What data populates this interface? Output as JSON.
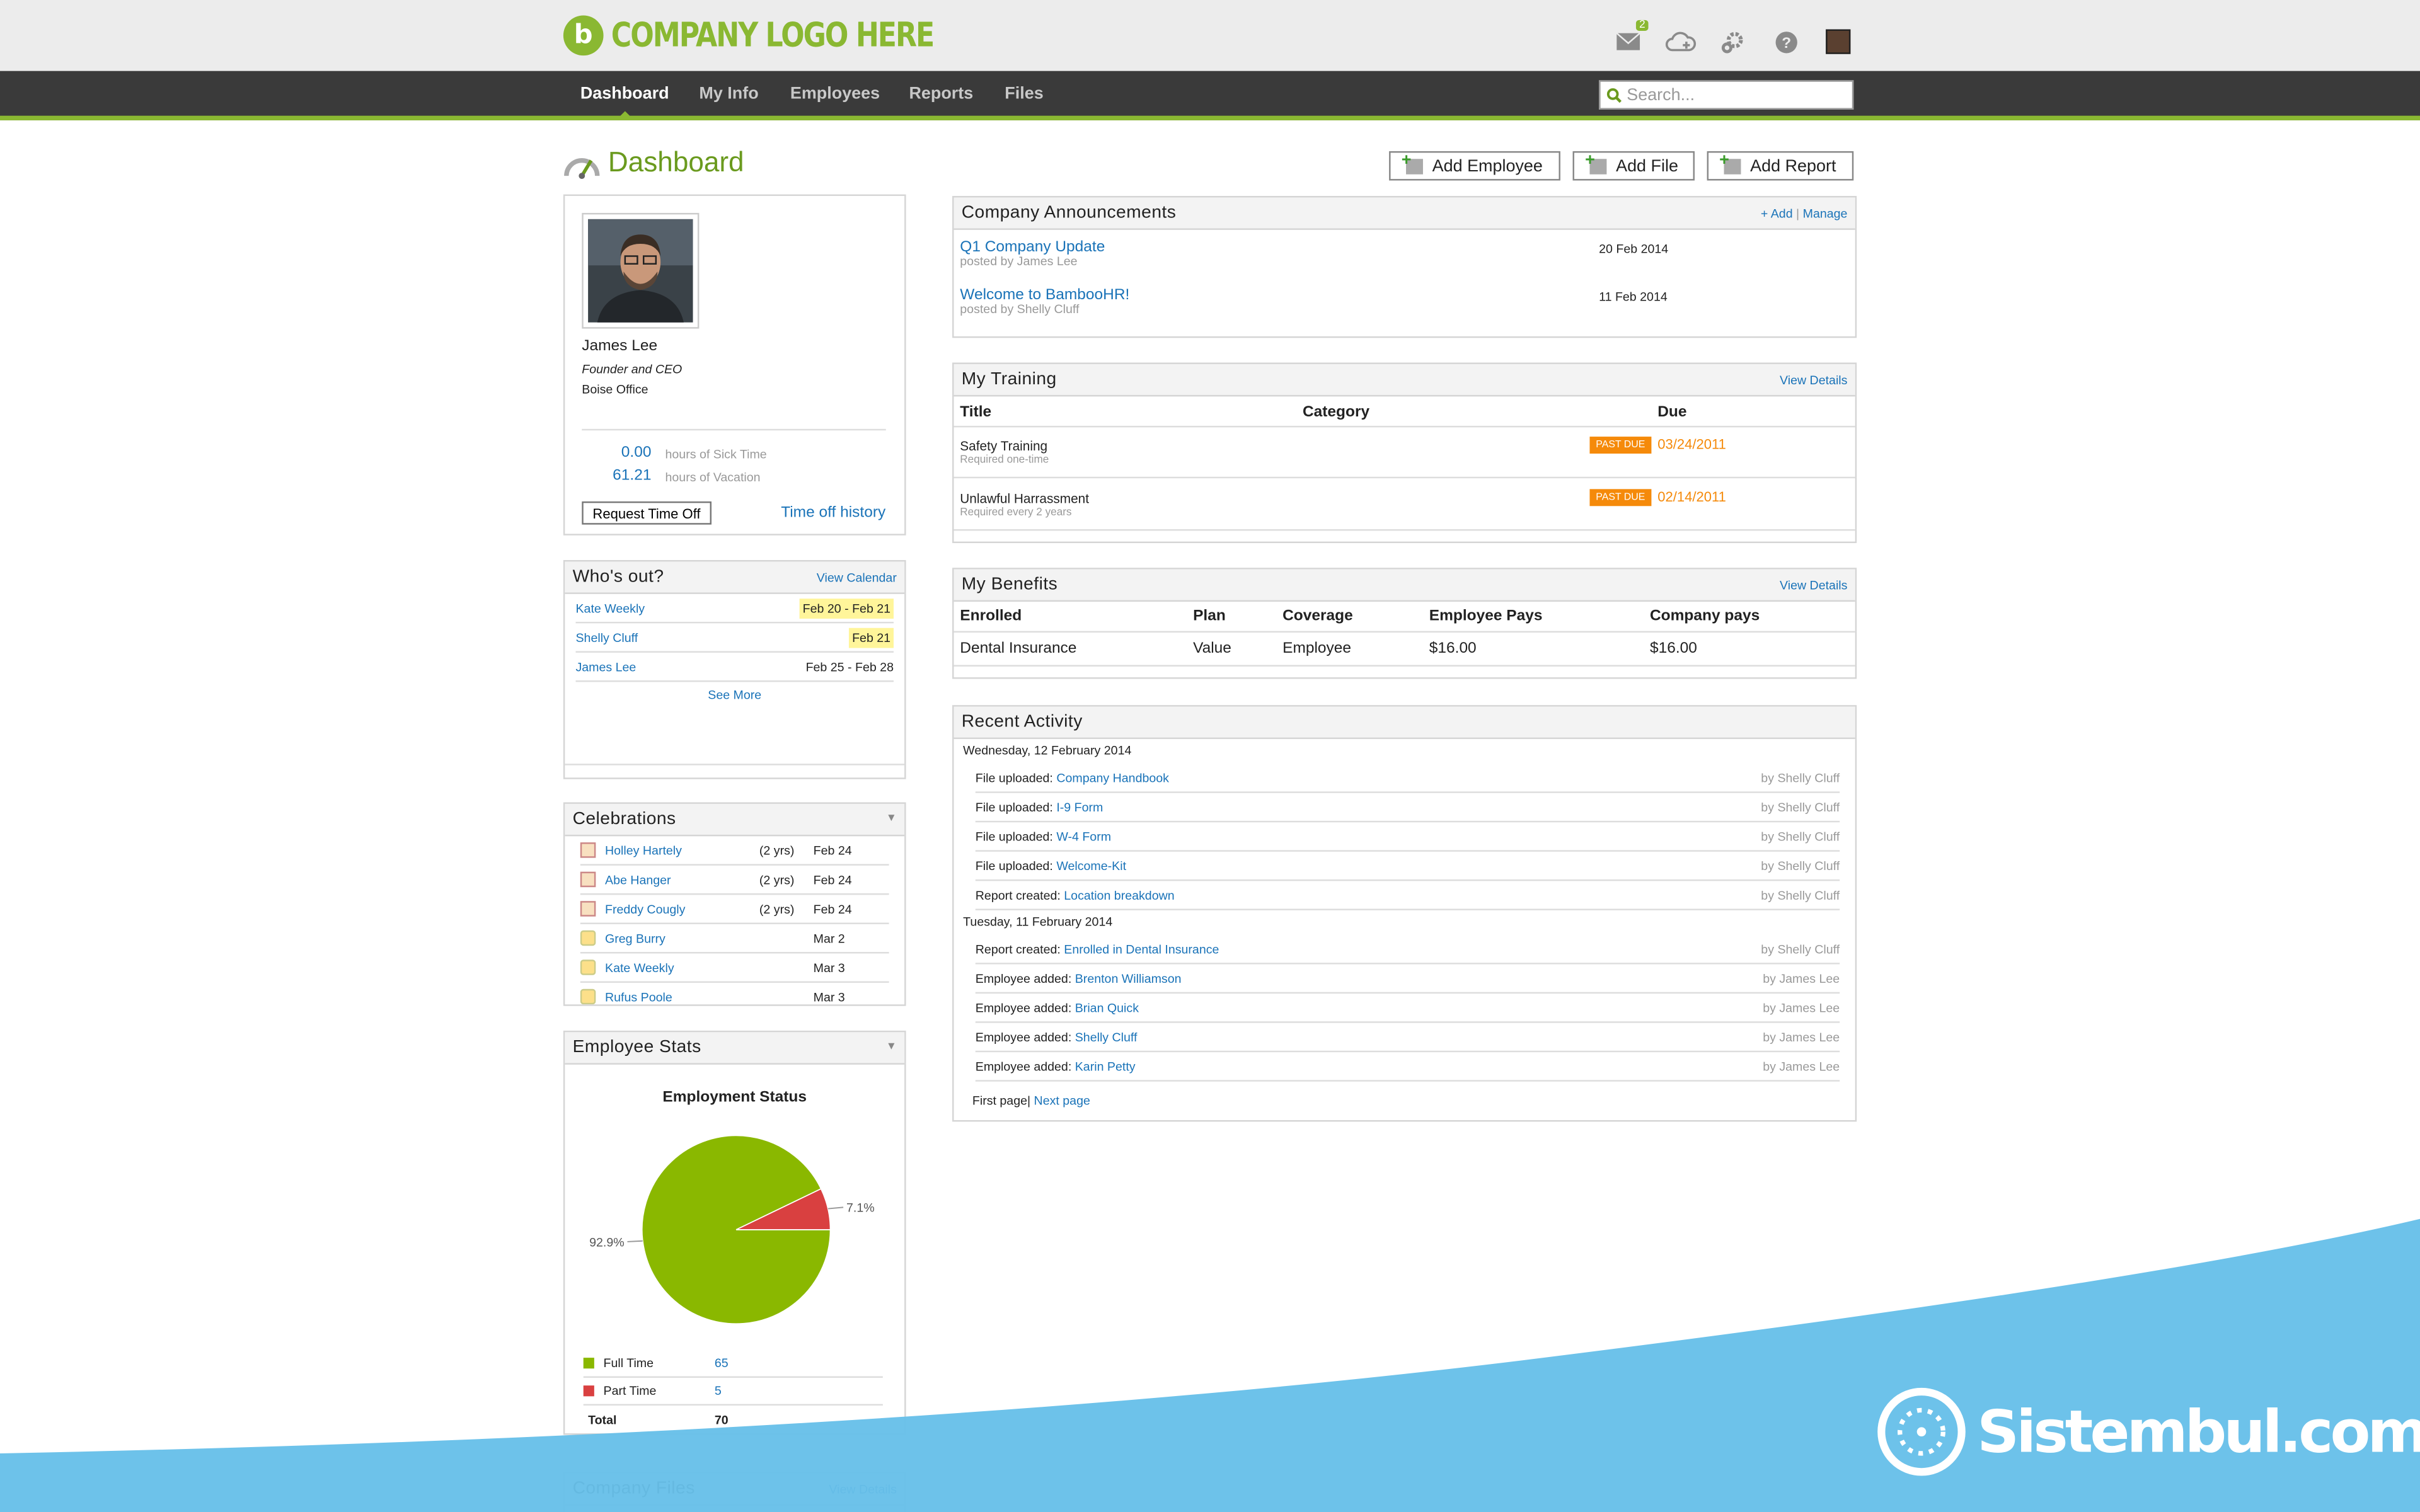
{
  "brand": {
    "logo_letter": "b",
    "logo_text": "COMPANY LOGO HERE",
    "accent": "#8ab832"
  },
  "topbar": {
    "icons": [
      "mail-icon",
      "cloud-upload-icon",
      "gear-icon",
      "help-icon",
      "user-avatar"
    ],
    "mail_count": "2"
  },
  "nav": {
    "items": [
      "Dashboard",
      "My Info",
      "Employees",
      "Reports",
      "Files"
    ],
    "active": "Dashboard"
  },
  "search": {
    "placeholder": "Search..."
  },
  "page": {
    "title": "Dashboard"
  },
  "actions": {
    "add_employee": "Add Employee",
    "add_file": "Add File",
    "add_report": "Add Report"
  },
  "profile": {
    "name": "James Lee",
    "job_title": "Founder and CEO",
    "location": "Boise Office",
    "sick_hours": "0.00",
    "sick_label": "hours of Sick Time",
    "vac_hours": "61.21",
    "vac_label": "hours of Vacation",
    "request_btn": "Request Time Off",
    "history_link": "Time off history"
  },
  "whos_out": {
    "title": "Who's out?",
    "link": "View Calendar",
    "see_more": "See More",
    "rows": [
      {
        "name": "Kate Weekly",
        "dates": "Feb 20 - Feb 21"
      },
      {
        "name": "Shelly Cluff",
        "dates": "Feb 21"
      },
      {
        "name": "James Lee",
        "dates": "Feb 25 - Feb 28"
      }
    ]
  },
  "celebrations": {
    "title": "Celebrations",
    "rows": [
      {
        "name": "Holley Hartely",
        "years": "(2 yrs)",
        "date": "Feb 24"
      },
      {
        "name": "Abe Hanger",
        "years": "(2 yrs)",
        "date": "Feb 24"
      },
      {
        "name": "Freddy Cougly",
        "years": "(2 yrs)",
        "date": "Feb 24"
      },
      {
        "name": "Greg Burry",
        "years": "",
        "date": "Mar 2"
      },
      {
        "name": "Kate Weekly",
        "years": "",
        "date": "Mar 3"
      },
      {
        "name": "Rufus Poole",
        "years": "",
        "date": "Mar 3"
      }
    ]
  },
  "stats": {
    "title": "Employee Stats",
    "legend_total_label": "Total",
    "total": "70",
    "rows": [
      {
        "label": "Full Time",
        "value": "65",
        "color": "#8ab800"
      },
      {
        "label": "Part Time",
        "value": "5",
        "color": "#d94040"
      }
    ]
  },
  "chart_data": {
    "type": "pie",
    "title": "Employment Status",
    "labels": [
      "Full Time",
      "Part Time"
    ],
    "values": [
      65,
      5
    ],
    "percent_labels": [
      "92.9%",
      "7.1%"
    ],
    "colors": [
      "#8ab800",
      "#d94040"
    ]
  },
  "company_files": {
    "title": "Company Files",
    "link": "View Details"
  },
  "announcements": {
    "title": "Company Announcements",
    "add": "+ Add",
    "manage": "Manage",
    "items": [
      {
        "title": "Q1 Company Update",
        "by": "posted by James Lee",
        "date": "20 Feb 2014"
      },
      {
        "title": "Welcome to BambooHR!",
        "by": "posted by Shelly Cluff",
        "date": "11 Feb 2014"
      }
    ]
  },
  "training": {
    "title": "My Training",
    "link": "View Details",
    "cols": [
      "Title",
      "Category",
      "Due"
    ],
    "items": [
      {
        "title": "Safety Training",
        "freq": "Required one-time",
        "status": "PAST DUE",
        "due": "03/24/2011"
      },
      {
        "title": "Unlawful Harrassment",
        "freq": "Required every 2 years",
        "status": "PAST DUE",
        "due": "02/14/2011"
      }
    ]
  },
  "benefits": {
    "title": "My Benefits",
    "link": "View Details",
    "cols": [
      "Enrolled",
      "Plan",
      "Coverage",
      "Employee Pays",
      "Company pays"
    ],
    "row": [
      "Dental Insurance",
      "Value",
      "Employee",
      "$16.00",
      "$16.00"
    ]
  },
  "activity": {
    "title": "Recent Activity",
    "days": [
      {
        "date": "Wednesday, 12 February 2014",
        "rows": [
          {
            "action": "File uploaded:",
            "target": "Company Handbook",
            "by": "by Shelly Cluff"
          },
          {
            "action": "File uploaded:",
            "target": "I-9 Form",
            "by": "by Shelly Cluff"
          },
          {
            "action": "File uploaded:",
            "target": "W-4 Form",
            "by": "by Shelly Cluff"
          },
          {
            "action": "File uploaded:",
            "target": "Welcome-Kit",
            "by": "by Shelly Cluff"
          },
          {
            "action": "Report created:",
            "target": "Location breakdown",
            "by": "by Shelly Cluff"
          }
        ]
      },
      {
        "date": "Tuesday, 11 February 2014",
        "rows": [
          {
            "action": "Report created:",
            "target": "Enrolled in Dental Insurance",
            "by": "by Shelly Cluff"
          },
          {
            "action": "Employee added:",
            "target": "Brenton Williamson",
            "by": "by James Lee"
          },
          {
            "action": "Employee added:",
            "target": "Brian Quick",
            "by": "by James Lee"
          },
          {
            "action": "Employee added:",
            "target": "Shelly Cluff",
            "by": "by James Lee"
          },
          {
            "action": "Employee added:",
            "target": "Karin Petty",
            "by": "by James Lee"
          }
        ]
      }
    ],
    "first_page": "First page",
    "separator": "|",
    "next_page": "Next page"
  },
  "watermark": {
    "text": "Sistembul.com",
    "color": "#67bfe9"
  }
}
